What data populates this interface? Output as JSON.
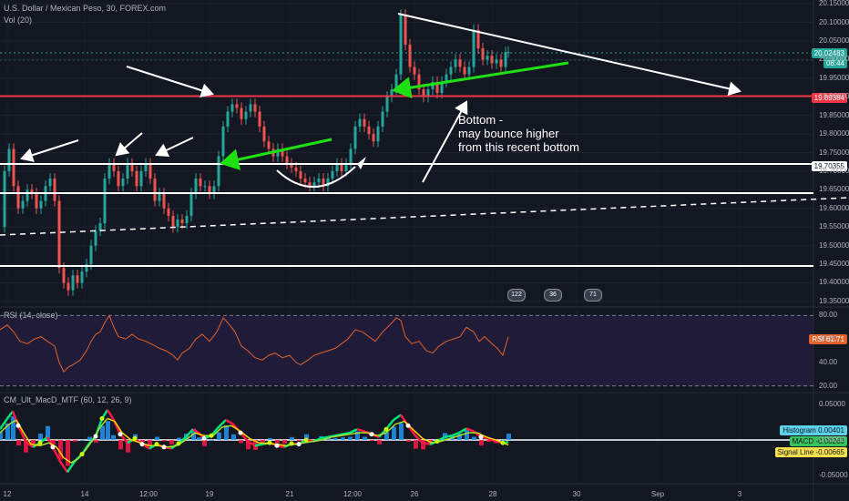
{
  "header": {
    "title": "U.S. Dollar / Mexican Peso, 30, FOREX.com",
    "volume": "Vol (20)",
    "rsi": "RSI (14, close)",
    "macd": "CM_Ult_MacD_MTF (60, 12, 26, 9)"
  },
  "annotation": {
    "line1": "Bottom -",
    "line2": "may bounce higher",
    "line3": "from this recent bottom"
  },
  "price_labels": {
    "last": "20.02483",
    "countdown": "08:44",
    "red_level": "19.89384",
    "white_level": "19.70355"
  },
  "rsi_labels": {
    "name": "RSI",
    "value": "61.71"
  },
  "macd_labels": {
    "histogram": "Histogram",
    "histogram_value": "0.00401",
    "macd": "MACD",
    "macd_value": "-0.00263",
    "signal": "Signal Line",
    "signal_value": "-0.00665"
  },
  "events": [
    "122",
    "36",
    "71"
  ],
  "colors": {
    "background": "#131722",
    "up_candle": "#26a69a",
    "down_candle": "#ef5350",
    "rsi_line": "#e0622b",
    "trend_green": "#1ee012",
    "resistance_red": "#f23645",
    "macd_up": "#00e676",
    "macd_down": "#ff1744",
    "macd_signal_up": "#a6e22e",
    "macd_signal_down": "#ffd600",
    "histogram_blue": "#2196f3"
  },
  "chart_data": {
    "type": "line",
    "title": "U.S. Dollar / Mexican Peso, 30, FOREX.com",
    "price_axis": {
      "ticks": [
        "20.15000",
        "20.10000",
        "20.05000",
        "20.00000",
        "19.95000",
        "19.90000",
        "19.85000",
        "19.80000",
        "19.75000",
        "19.70000",
        "19.65000",
        "19.60000",
        "19.55000",
        "19.50000",
        "19.45000",
        "19.40000",
        "19.35000"
      ],
      "ylim": [
        19.34,
        20.16
      ]
    },
    "rsi_axis": {
      "ticks": [
        "80.00",
        "60.00",
        "40.00",
        "20.00"
      ],
      "ylim": [
        15,
        85
      ]
    },
    "macd_axis": {
      "ticks": [
        "0.05000",
        "0.00000",
        "-0.05000"
      ],
      "ylim": [
        -0.06,
        0.065
      ]
    },
    "x_ticks": [
      "12",
      "14",
      "12:00",
      "19",
      "21",
      "12:00",
      "26",
      "28",
      "30",
      "Sep",
      "3"
    ],
    "price_series": [
      [
        0,
        19.55
      ],
      [
        5,
        19.7
      ],
      [
        10,
        19.76
      ],
      [
        15,
        19.66
      ],
      [
        20,
        19.6
      ],
      [
        25,
        19.62
      ],
      [
        30,
        19.65
      ],
      [
        35,
        19.64
      ],
      [
        40,
        19.6
      ],
      [
        45,
        19.62
      ],
      [
        50,
        19.66
      ],
      [
        55,
        19.68
      ],
      [
        60,
        19.62
      ],
      [
        65,
        19.44
      ],
      [
        70,
        19.4
      ],
      [
        75,
        19.38
      ],
      [
        80,
        19.42
      ],
      [
        85,
        19.4
      ],
      [
        90,
        19.43
      ],
      [
        95,
        19.45
      ],
      [
        100,
        19.5
      ],
      [
        105,
        19.54
      ],
      [
        110,
        19.56
      ],
      [
        115,
        19.68
      ],
      [
        120,
        19.72
      ],
      [
        125,
        19.7
      ],
      [
        130,
        19.66
      ],
      [
        135,
        19.68
      ],
      [
        140,
        19.72
      ],
      [
        145,
        19.7
      ],
      [
        150,
        19.66
      ],
      [
        155,
        19.7
      ],
      [
        160,
        19.72
      ],
      [
        165,
        19.68
      ],
      [
        170,
        19.62
      ],
      [
        175,
        19.64
      ],
      [
        180,
        19.6
      ],
      [
        185,
        19.58
      ],
      [
        190,
        19.55
      ],
      [
        195,
        19.57
      ],
      [
        200,
        19.56
      ],
      [
        205,
        19.58
      ],
      [
        210,
        19.64
      ],
      [
        215,
        19.68
      ],
      [
        220,
        19.66
      ],
      [
        225,
        19.66
      ],
      [
        230,
        19.64
      ],
      [
        235,
        19.66
      ],
      [
        240,
        19.74
      ],
      [
        245,
        19.82
      ],
      [
        250,
        19.86
      ],
      [
        255,
        19.88
      ],
      [
        260,
        19.87
      ],
      [
        265,
        19.84
      ],
      [
        270,
        19.86
      ],
      [
        275,
        19.88
      ],
      [
        280,
        19.86
      ],
      [
        285,
        19.82
      ],
      [
        290,
        19.78
      ],
      [
        295,
        19.76
      ],
      [
        300,
        19.74
      ],
      [
        305,
        19.76
      ],
      [
        310,
        19.74
      ],
      [
        315,
        19.72
      ],
      [
        320,
        19.71
      ],
      [
        325,
        19.7
      ],
      [
        330,
        19.68
      ],
      [
        335,
        19.67
      ],
      [
        340,
        19.66
      ],
      [
        345,
        19.67
      ],
      [
        350,
        19.68
      ],
      [
        355,
        19.66
      ],
      [
        360,
        19.68
      ],
      [
        365,
        19.7
      ],
      [
        370,
        19.72
      ],
      [
        375,
        19.7
      ],
      [
        380,
        19.72
      ],
      [
        385,
        19.76
      ],
      [
        390,
        19.82
      ],
      [
        395,
        19.84
      ],
      [
        400,
        19.82
      ],
      [
        405,
        19.8
      ],
      [
        410,
        19.78
      ],
      [
        415,
        19.82
      ],
      [
        420,
        19.86
      ],
      [
        425,
        19.9
      ],
      [
        430,
        19.92
      ],
      [
        435,
        19.96
      ],
      [
        440,
        20.12
      ],
      [
        445,
        20.04
      ],
      [
        450,
        19.98
      ],
      [
        455,
        19.96
      ],
      [
        460,
        19.92
      ],
      [
        465,
        19.9
      ],
      [
        470,
        19.92
      ],
      [
        475,
        19.94
      ],
      [
        480,
        19.91
      ],
      [
        485,
        19.94
      ],
      [
        490,
        19.96
      ],
      [
        495,
        19.98
      ],
      [
        500,
        20.0
      ],
      [
        505,
        19.98
      ],
      [
        510,
        19.96
      ],
      [
        515,
        19.98
      ],
      [
        520,
        20.08
      ],
      [
        525,
        20.03
      ],
      [
        530,
        20.0
      ],
      [
        535,
        20.01
      ],
      [
        540,
        19.99
      ],
      [
        545,
        20.0
      ],
      [
        550,
        19.98
      ],
      [
        555,
        20.02
      ],
      [
        558,
        20.02
      ]
    ],
    "rsi_series": [
      [
        0,
        68
      ],
      [
        8,
        72
      ],
      [
        15,
        66
      ],
      [
        22,
        58
      ],
      [
        30,
        56
      ],
      [
        38,
        60
      ],
      [
        45,
        62
      ],
      [
        52,
        58
      ],
      [
        60,
        54
      ],
      [
        65,
        40
      ],
      [
        70,
        32
      ],
      [
        75,
        36
      ],
      [
        80,
        38
      ],
      [
        88,
        42
      ],
      [
        95,
        50
      ],
      [
        100,
        58
      ],
      [
        105,
        64
      ],
      [
        110,
        66
      ],
      [
        115,
        74
      ],
      [
        120,
        80
      ],
      [
        125,
        70
      ],
      [
        130,
        62
      ],
      [
        138,
        60
      ],
      [
        145,
        64
      ],
      [
        152,
        60
      ],
      [
        160,
        58
      ],
      [
        168,
        55
      ],
      [
        175,
        52
      ],
      [
        182,
        50
      ],
      [
        190,
        46
      ],
      [
        195,
        42
      ],
      [
        200,
        48
      ],
      [
        208,
        52
      ],
      [
        215,
        60
      ],
      [
        222,
        64
      ],
      [
        230,
        58
      ],
      [
        238,
        66
      ],
      [
        245,
        78
      ],
      [
        250,
        74
      ],
      [
        258,
        66
      ],
      [
        265,
        54
      ],
      [
        272,
        50
      ],
      [
        280,
        44
      ],
      [
        288,
        42
      ],
      [
        295,
        46
      ],
      [
        302,
        48
      ],
      [
        310,
        44
      ],
      [
        318,
        46
      ],
      [
        325,
        40
      ],
      [
        330,
        38
      ],
      [
        338,
        42
      ],
      [
        345,
        46
      ],
      [
        352,
        48
      ],
      [
        360,
        50
      ],
      [
        368,
        52
      ],
      [
        375,
        56
      ],
      [
        382,
        60
      ],
      [
        390,
        68
      ],
      [
        398,
        66
      ],
      [
        405,
        62
      ],
      [
        412,
        58
      ],
      [
        420,
        66
      ],
      [
        428,
        72
      ],
      [
        435,
        78
      ],
      [
        440,
        76
      ],
      [
        445,
        62
      ],
      [
        452,
        56
      ],
      [
        460,
        58
      ],
      [
        468,
        50
      ],
      [
        475,
        48
      ],
      [
        482,
        54
      ],
      [
        490,
        58
      ],
      [
        498,
        60
      ],
      [
        505,
        62
      ],
      [
        512,
        70
      ],
      [
        520,
        66
      ],
      [
        526,
        58
      ],
      [
        532,
        62
      ],
      [
        540,
        56
      ],
      [
        546,
        52
      ],
      [
        552,
        46
      ],
      [
        558,
        62
      ]
    ],
    "macd_series": [
      [
        0,
        0.015
      ],
      [
        8,
        0.03
      ],
      [
        14,
        0.04
      ],
      [
        20,
        0.02
      ],
      [
        28,
        -0.002
      ],
      [
        36,
        -0.01
      ],
      [
        44,
        -0.004
      ],
      [
        52,
        0.004
      ],
      [
        58,
        -0.01
      ],
      [
        66,
        -0.03
      ],
      [
        74,
        -0.045
      ],
      [
        82,
        -0.03
      ],
      [
        90,
        -0.02
      ],
      [
        98,
        -0.005
      ],
      [
        105,
        0.005
      ],
      [
        112,
        0.03
      ],
      [
        118,
        0.042
      ],
      [
        124,
        0.03
      ],
      [
        132,
        0.008
      ],
      [
        140,
        -0.004
      ],
      [
        148,
        0.002
      ],
      [
        156,
        -0.006
      ],
      [
        164,
        -0.012
      ],
      [
        172,
        -0.006
      ],
      [
        180,
        -0.01
      ],
      [
        188,
        -0.012
      ],
      [
        196,
        -0.005
      ],
      [
        204,
        0.004
      ],
      [
        212,
        0.015
      ],
      [
        218,
        0.01
      ],
      [
        224,
        0.002
      ],
      [
        232,
        0.006
      ],
      [
        240,
        0.018
      ],
      [
        248,
        0.028
      ],
      [
        256,
        0.022
      ],
      [
        264,
        0.01
      ],
      [
        272,
        -0.002
      ],
      [
        280,
        -0.008
      ],
      [
        288,
        -0.006
      ],
      [
        296,
        -0.004
      ],
      [
        304,
        -0.008
      ],
      [
        312,
        -0.01
      ],
      [
        320,
        -0.005
      ],
      [
        328,
        -0.006
      ],
      [
        336,
        0.0
      ],
      [
        344,
        -0.002
      ],
      [
        352,
        0.002
      ],
      [
        360,
        0.004
      ],
      [
        368,
        0.006
      ],
      [
        376,
        0.008
      ],
      [
        384,
        0.01
      ],
      [
        392,
        0.015
      ],
      [
        400,
        0.012
      ],
      [
        408,
        0.008
      ],
      [
        416,
        0.004
      ],
      [
        424,
        0.015
      ],
      [
        432,
        0.028
      ],
      [
        440,
        0.035
      ],
      [
        448,
        0.02
      ],
      [
        456,
        0.006
      ],
      [
        464,
        -0.004
      ],
      [
        472,
        -0.006
      ],
      [
        480,
        -0.002
      ],
      [
        488,
        0.004
      ],
      [
        496,
        0.006
      ],
      [
        504,
        0.01
      ],
      [
        512,
        0.016
      ],
      [
        520,
        0.012
      ],
      [
        528,
        0.004
      ],
      [
        536,
        0.002
      ],
      [
        544,
        -0.002
      ],
      [
        552,
        -0.004
      ],
      [
        558,
        -0.003
      ]
    ],
    "signal_series": [
      [
        0,
        0.01
      ],
      [
        10,
        0.022
      ],
      [
        18,
        0.028
      ],
      [
        26,
        0.01
      ],
      [
        34,
        -0.006
      ],
      [
        44,
        -0.008
      ],
      [
        54,
        -0.004
      ],
      [
        62,
        -0.01
      ],
      [
        70,
        -0.025
      ],
      [
        78,
        -0.032
      ],
      [
        86,
        -0.026
      ],
      [
        94,
        -0.014
      ],
      [
        102,
        0.0
      ],
      [
        110,
        0.018
      ],
      [
        118,
        0.03
      ],
      [
        126,
        0.026
      ],
      [
        134,
        0.01
      ],
      [
        144,
        0.0
      ],
      [
        154,
        -0.004
      ],
      [
        164,
        -0.008
      ],
      [
        174,
        -0.008
      ],
      [
        184,
        -0.01
      ],
      [
        194,
        -0.008
      ],
      [
        204,
        0.0
      ],
      [
        214,
        0.01
      ],
      [
        224,
        0.006
      ],
      [
        234,
        0.006
      ],
      [
        244,
        0.018
      ],
      [
        254,
        0.02
      ],
      [
        264,
        0.012
      ],
      [
        274,
        0.002
      ],
      [
        284,
        -0.004
      ],
      [
        294,
        -0.005
      ],
      [
        304,
        -0.006
      ],
      [
        314,
        -0.008
      ],
      [
        324,
        -0.006
      ],
      [
        334,
        -0.004
      ],
      [
        344,
        -0.002
      ],
      [
        354,
        0.0
      ],
      [
        364,
        0.004
      ],
      [
        374,
        0.006
      ],
      [
        384,
        0.008
      ],
      [
        394,
        0.01
      ],
      [
        404,
        0.01
      ],
      [
        414,
        0.006
      ],
      [
        424,
        0.01
      ],
      [
        434,
        0.022
      ],
      [
        444,
        0.026
      ],
      [
        454,
        0.014
      ],
      [
        464,
        0.002
      ],
      [
        474,
        -0.004
      ],
      [
        484,
        -0.002
      ],
      [
        494,
        0.002
      ],
      [
        504,
        0.006
      ],
      [
        514,
        0.01
      ],
      [
        524,
        0.01
      ],
      [
        534,
        0.004
      ],
      [
        544,
        0.0
      ],
      [
        558,
        -0.007
      ]
    ]
  }
}
